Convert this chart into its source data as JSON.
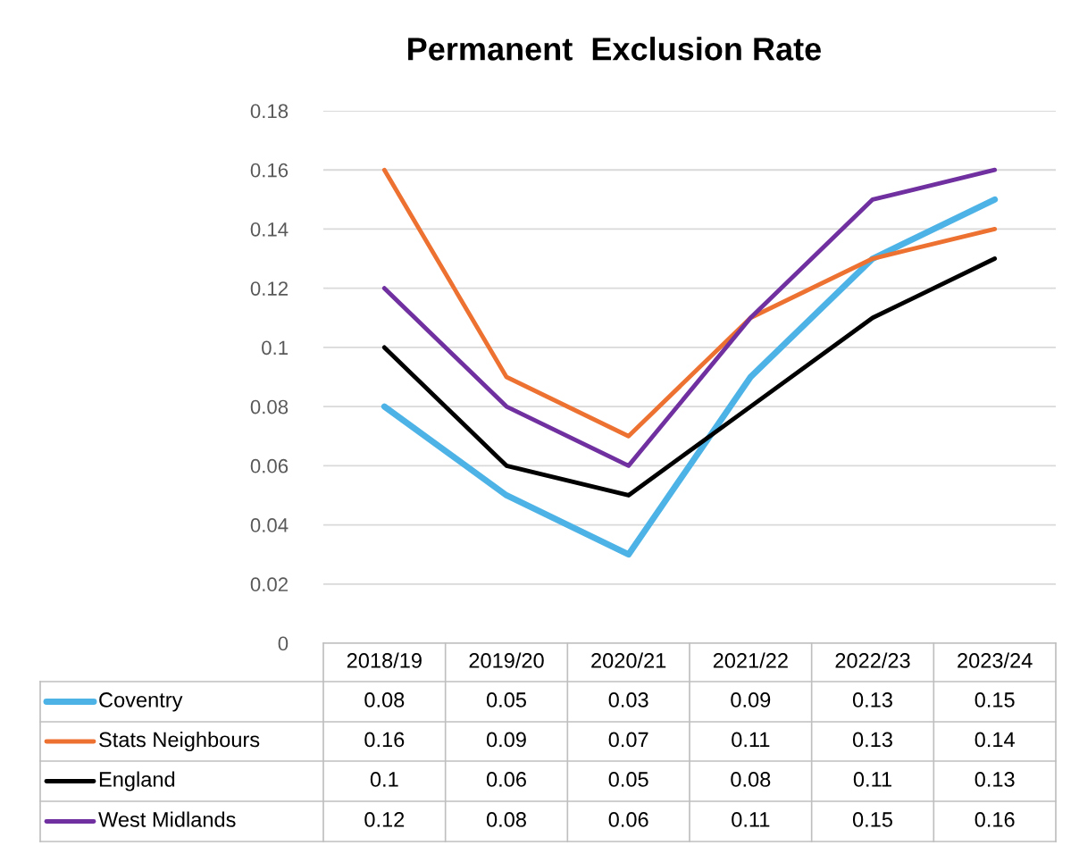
{
  "chart_data": {
    "type": "line",
    "title": "Permanent  Exclusion Rate",
    "categories": [
      "2018/19",
      "2019/20",
      "2020/21",
      "2021/22",
      "2022/23",
      "2023/24"
    ],
    "series": [
      {
        "name": "Coventry",
        "color": "#4db3e6",
        "values": [
          0.08,
          0.05,
          0.03,
          0.09,
          0.13,
          0.15
        ]
      },
      {
        "name": "Stats Neighbours",
        "color": "#ed7232",
        "values": [
          0.16,
          0.09,
          0.07,
          0.11,
          0.13,
          0.14
        ]
      },
      {
        "name": "England",
        "color": "#000000",
        "values": [
          0.1,
          0.06,
          0.05,
          0.08,
          0.11,
          0.13
        ]
      },
      {
        "name": "West Midlands",
        "color": "#7030a0",
        "values": [
          0.12,
          0.08,
          0.06,
          0.11,
          0.15,
          0.16
        ]
      }
    ],
    "ylim": [
      0,
      0.18
    ],
    "yticks": [
      0,
      0.02,
      0.04,
      0.06,
      0.08,
      0.1,
      0.12,
      0.14,
      0.16,
      0.18
    ],
    "grid": "y",
    "legend": "bottom",
    "data_labels": true,
    "marker": "none",
    "line_style": "solid"
  }
}
